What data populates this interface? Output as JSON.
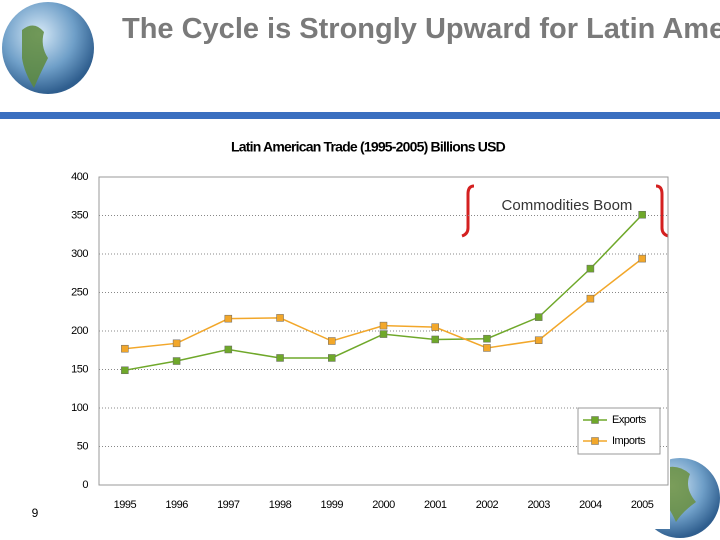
{
  "slide": {
    "title": "The Cycle is Strongly Upward for Latin America…",
    "page_number": "9"
  },
  "chart_data": {
    "type": "line",
    "title": "Latin American Trade (1995-2005) Billions USD",
    "categories": [
      "1995",
      "1996",
      "1997",
      "1998",
      "1999",
      "2000",
      "2001",
      "2002",
      "2003",
      "2004",
      "2005"
    ],
    "series": [
      {
        "name": "Exports",
        "color": "#6fa82a",
        "values": [
          149,
          161,
          176,
          165,
          165,
          196,
          189,
          190,
          218,
          281,
          351
        ]
      },
      {
        "name": "Imports",
        "color": "#f2a72a",
        "values": [
          177,
          184,
          216,
          217,
          187,
          207,
          205,
          178,
          188,
          242,
          294
        ]
      }
    ],
    "ylim": [
      0,
      400
    ],
    "yticks": [
      0,
      50,
      100,
      150,
      200,
      250,
      300,
      350,
      400
    ],
    "grid": true,
    "legend": "lower-right",
    "annotation": "Commodities Boom"
  }
}
